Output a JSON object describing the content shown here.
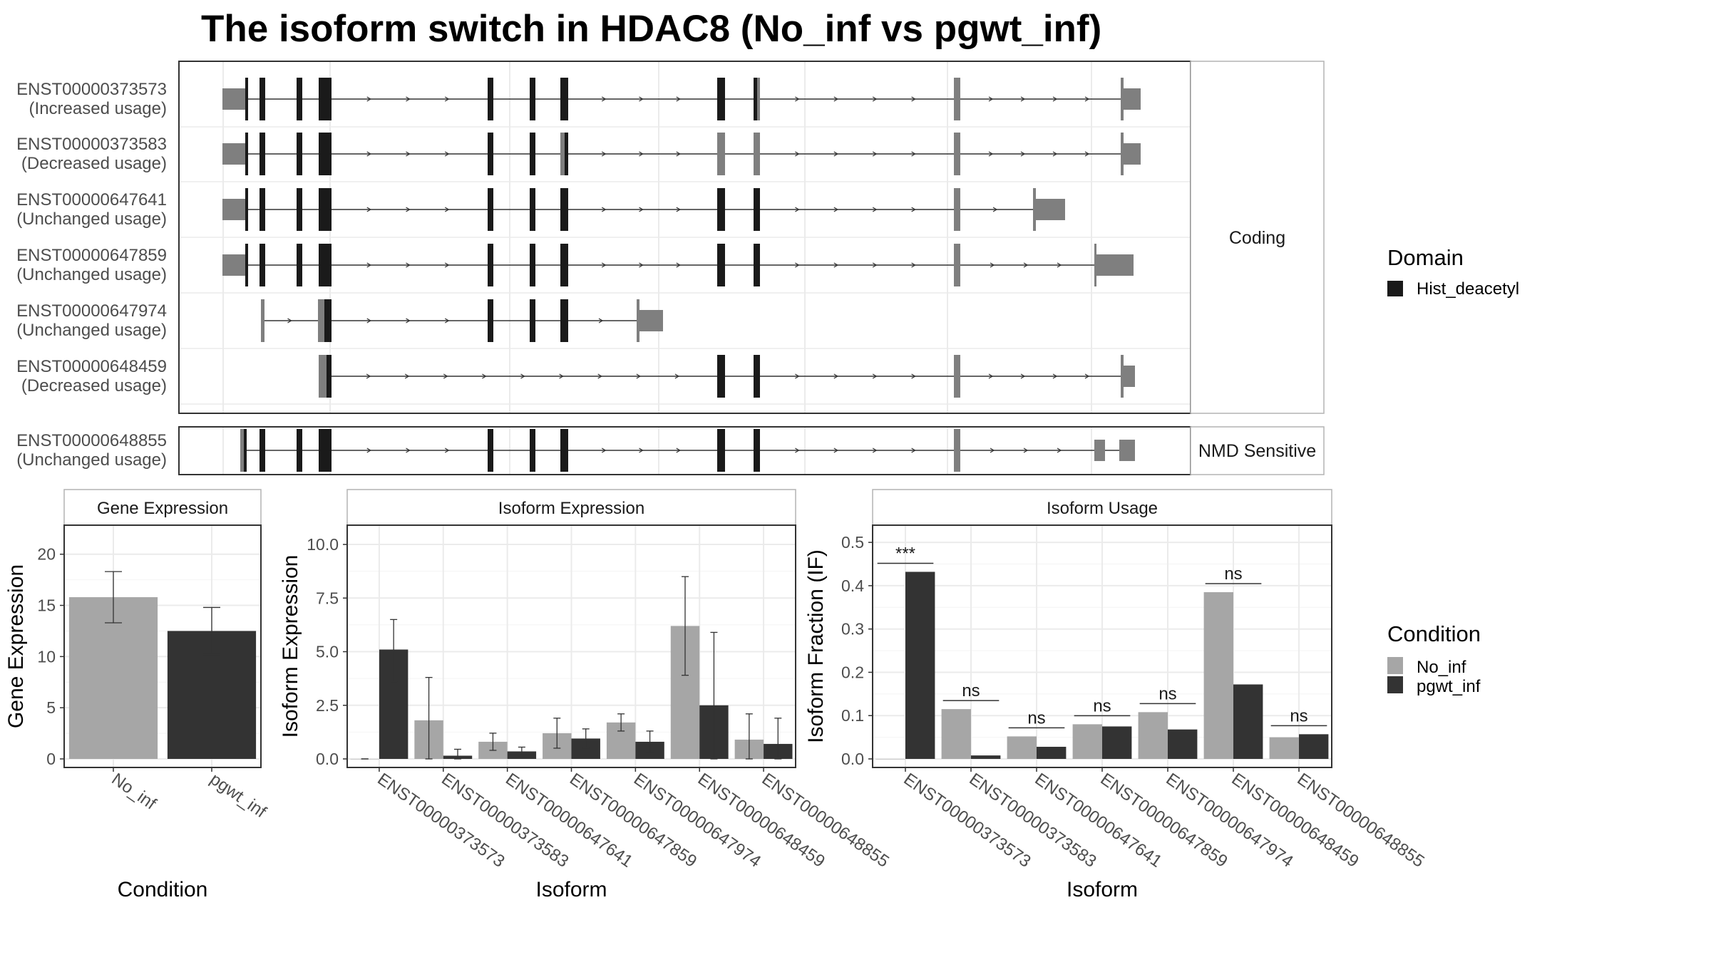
{
  "title": "The isoform switch in HDAC8 (No_inf vs pgwt_inf)",
  "colors": {
    "domain": "#1a1a1a",
    "utr": "#7f7f7f",
    "no_inf": "#a6a6a6",
    "pgwt_inf": "#333333",
    "grid": "#ebebeb",
    "panel_border": "#333333",
    "strip_border": "#333333",
    "text": "#4d4d4d"
  },
  "structure": {
    "coding_strip_label": "Coding",
    "nmd_strip_label": "NMD Sensitive",
    "transcripts": [
      {
        "id": "ENST00000373573",
        "usage": "(Increased usage)",
        "group": "Coding"
      },
      {
        "id": "ENST00000373583",
        "usage": "(Decreased usage)",
        "group": "Coding"
      },
      {
        "id": "ENST00000647641",
        "usage": "(Unchanged usage)",
        "group": "Coding"
      },
      {
        "id": "ENST00000647859",
        "usage": "(Unchanged usage)",
        "group": "Coding"
      },
      {
        "id": "ENST00000647974",
        "usage": "(Unchanged usage)",
        "group": "Coding"
      },
      {
        "id": "ENST00000648459",
        "usage": "(Decreased usage)",
        "group": "Coding"
      },
      {
        "id": "ENST00000648855",
        "usage": "(Unchanged usage)",
        "group": "NMD Sensitive"
      }
    ]
  },
  "legend": {
    "domain_title": "Domain",
    "domain_items": [
      {
        "label": "Hist_deacetyl",
        "color": "#1a1a1a"
      }
    ],
    "condition_title": "Condition",
    "condition_items": [
      {
        "label": "No_inf",
        "color": "#a6a6a6"
      },
      {
        "label": "pgwt_inf",
        "color": "#333333"
      }
    ]
  },
  "chart_data": [
    {
      "type": "bar",
      "title": "Gene Expression",
      "xlabel": "Condition",
      "ylabel": "Gene Expression",
      "ylim": [
        0,
        22
      ],
      "yticks": [
        0,
        5,
        10,
        15,
        20
      ],
      "ytick_labels": [
        "0",
        "5",
        "10",
        "15",
        "20"
      ],
      "categories": [
        "No_inf",
        "pgwt_inf"
      ],
      "values": [
        15.8,
        12.5
      ],
      "err_low": [
        13.3,
        10.2
      ],
      "err_high": [
        18.3,
        14.8
      ]
    },
    {
      "type": "bar",
      "title": "Isoform Expression",
      "xlabel": "Isoform",
      "ylabel": "Isoform Expression",
      "ylim": [
        0,
        10.5
      ],
      "yticks": [
        0,
        2.5,
        5,
        7.5,
        10
      ],
      "ytick_labels": [
        "0.0",
        "2.5",
        "5.0",
        "7.5",
        "10.0"
      ],
      "categories": [
        "ENST00000373573",
        "ENST00000373583",
        "ENST00000647641",
        "ENST00000647859",
        "ENST00000647974",
        "ENST00000648459",
        "ENST00000648855"
      ],
      "series": [
        {
          "name": "No_inf",
          "values": [
            0.0,
            1.8,
            0.8,
            1.2,
            1.7,
            6.2,
            0.9
          ],
          "err_low": [
            0.0,
            0.0,
            0.4,
            0.5,
            1.3,
            3.9,
            0.0
          ],
          "err_high": [
            0.0,
            3.8,
            1.2,
            1.9,
            2.1,
            8.5,
            2.1
          ]
        },
        {
          "name": "pgwt_inf",
          "values": [
            5.1,
            0.15,
            0.35,
            0.95,
            0.8,
            2.5,
            0.7
          ],
          "err_low": [
            3.6,
            0.0,
            0.15,
            0.5,
            0.3,
            0.0,
            0.0
          ],
          "err_high": [
            6.5,
            0.45,
            0.55,
            1.4,
            1.3,
            5.9,
            1.9
          ]
        }
      ]
    },
    {
      "type": "bar",
      "title": "Isoform Usage",
      "xlabel": "Isoform",
      "ylabel": "Isoform Fraction (IF)",
      "ylim": [
        0,
        0.52
      ],
      "yticks": [
        0,
        0.1,
        0.2,
        0.3,
        0.4,
        0.5
      ],
      "ytick_labels": [
        "0.0",
        "0.1",
        "0.2",
        "0.3",
        "0.4",
        "0.5"
      ],
      "categories": [
        "ENST00000373573",
        "ENST00000373583",
        "ENST00000647641",
        "ENST00000647859",
        "ENST00000647974",
        "ENST00000648459",
        "ENST00000648855"
      ],
      "series": [
        {
          "name": "No_inf",
          "values": [
            0.0,
            0.115,
            0.052,
            0.08,
            0.108,
            0.385,
            0.05
          ]
        },
        {
          "name": "pgwt_inf",
          "values": [
            0.432,
            0.008,
            0.028,
            0.075,
            0.068,
            0.172,
            0.057
          ]
        }
      ],
      "significance": [
        "***",
        "ns",
        "ns",
        "ns",
        "ns",
        "ns",
        "ns"
      ]
    }
  ]
}
